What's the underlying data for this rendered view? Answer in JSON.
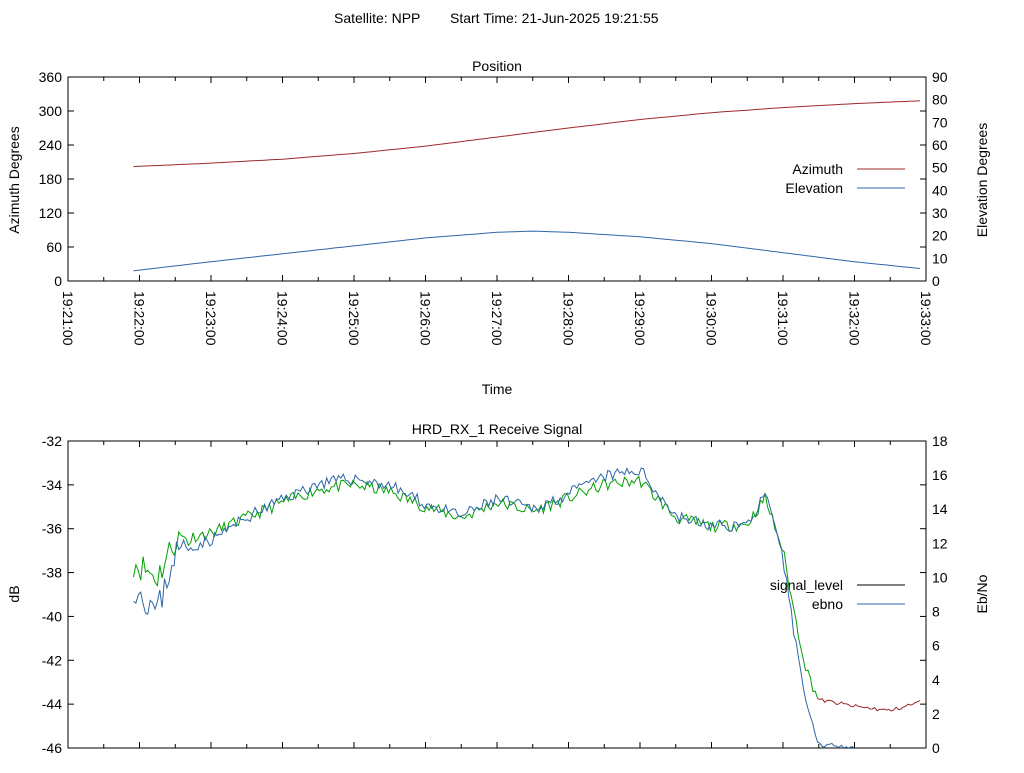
{
  "header": {
    "satellite": "Satellite: NPP",
    "start_time": "Start Time: 21-Jun-2025 19:21:55"
  },
  "colors": {
    "azimuth": "#9e2a2a",
    "elevation": "#2e66a8",
    "signal_level": "#000000",
    "signal_level_drawn": "#00a000",
    "ebno": "#2e66a8",
    "signal_tail": "#9e2a2a"
  },
  "chart_data": [
    {
      "type": "line",
      "title": "Position",
      "xlabel": "Time",
      "ylabel": "Azimuth Degrees",
      "y2label": "Elevation Degrees",
      "xlim": [
        "19:21:00",
        "19:33:00"
      ],
      "x_ticks": [
        "19:21:00",
        "19:22:00",
        "19:23:00",
        "19:24:00",
        "19:25:00",
        "19:26:00",
        "19:27:00",
        "19:28:00",
        "19:29:00",
        "19:30:00",
        "19:31:00",
        "19:32:00",
        "19:33:00"
      ],
      "ylim": [
        0,
        360
      ],
      "y_ticks": [
        "0",
        "60",
        "120",
        "180",
        "240",
        "300",
        "360"
      ],
      "y2lim": [
        0,
        90
      ],
      "y2_ticks": [
        "0",
        "10",
        "20",
        "30",
        "40",
        "50",
        "60",
        "70",
        "80",
        "90"
      ],
      "grid": false,
      "legend": "right",
      "series": [
        {
          "name": "Azimuth",
          "axis": "y",
          "x": [
            "19:21:55",
            "19:23:00",
            "19:24:00",
            "19:25:00",
            "19:26:00",
            "19:27:00",
            "19:28:00",
            "19:29:00",
            "19:30:00",
            "19:31:00",
            "19:32:00",
            "19:32:55"
          ],
          "values": [
            202,
            208,
            215,
            225,
            238,
            254,
            270,
            285,
            297,
            306,
            313,
            318
          ]
        },
        {
          "name": "Elevation",
          "axis": "y2",
          "x": [
            "19:21:55",
            "19:23:00",
            "19:24:00",
            "19:25:00",
            "19:26:00",
            "19:27:00",
            "19:27:30",
            "19:28:00",
            "19:29:00",
            "19:30:00",
            "19:31:00",
            "19:32:00",
            "19:32:55"
          ],
          "values": [
            4.5,
            8.5,
            12,
            15.5,
            19,
            21.5,
            22,
            21.5,
            19.5,
            16.5,
            12.5,
            8.5,
            5.5
          ]
        }
      ]
    },
    {
      "type": "line",
      "title": "HRD_RX_1 Receive Signal",
      "xlabel": "",
      "ylabel": "dB",
      "y2label": "Eb/No",
      "xlim": [
        "19:21:00",
        "19:33:00"
      ],
      "ylim": [
        -46,
        -32
      ],
      "y_ticks": [
        "-46",
        "-44",
        "-42",
        "-40",
        "-38",
        "-36",
        "-34",
        "-32"
      ],
      "y2lim": [
        0,
        18
      ],
      "y2_ticks": [
        "0",
        "2",
        "4",
        "6",
        "8",
        "10",
        "12",
        "14",
        "16",
        "18"
      ],
      "grid": false,
      "legend": "right",
      "series": [
        {
          "name": "signal_level",
          "axis": "y",
          "x": [
            "19:21:55",
            "19:22:15",
            "19:22:30",
            "19:23:00",
            "19:23:30",
            "19:24:00",
            "19:24:30",
            "19:25:00",
            "19:25:30",
            "19:26:00",
            "19:26:30",
            "19:27:00",
            "19:27:30",
            "19:28:00",
            "19:28:30",
            "19:29:00",
            "19:29:30",
            "19:30:00",
            "19:30:30",
            "19:30:45",
            "19:31:00",
            "19:31:10",
            "19:31:20",
            "19:31:30",
            "19:32:00",
            "19:32:30",
            "19:32:55"
          ],
          "values": [
            -37.5,
            -38.2,
            -36.5,
            -36.2,
            -35.5,
            -34.8,
            -34.2,
            -34.0,
            -34.3,
            -35.0,
            -35.5,
            -34.8,
            -35.2,
            -34.6,
            -34.0,
            -33.8,
            -35.5,
            -35.9,
            -35.8,
            -34.6,
            -37.0,
            -40.0,
            -42.5,
            -43.8,
            -44.1,
            -44.3,
            -43.9
          ]
        },
        {
          "name": "ebno",
          "axis": "y2",
          "x": [
            "19:21:55",
            "19:22:15",
            "19:22:30",
            "19:23:00",
            "19:23:30",
            "19:24:00",
            "19:24:30",
            "19:25:00",
            "19:25:30",
            "19:26:00",
            "19:26:30",
            "19:27:00",
            "19:27:30",
            "19:28:00",
            "19:28:30",
            "19:29:00",
            "19:29:30",
            "19:30:00",
            "19:30:30",
            "19:30:45",
            "19:31:00",
            "19:31:10",
            "19:31:20",
            "19:31:30",
            "19:32:00"
          ],
          "values": [
            9.5,
            8.0,
            11.5,
            12.2,
            13.5,
            14.6,
            15.5,
            15.8,
            15.4,
            14.3,
            13.6,
            14.6,
            14.0,
            14.9,
            15.9,
            16.3,
            13.6,
            13.0,
            13.1,
            14.9,
            11.0,
            6.5,
            2.5,
            0.2,
            0.1
          ]
        }
      ]
    }
  ]
}
